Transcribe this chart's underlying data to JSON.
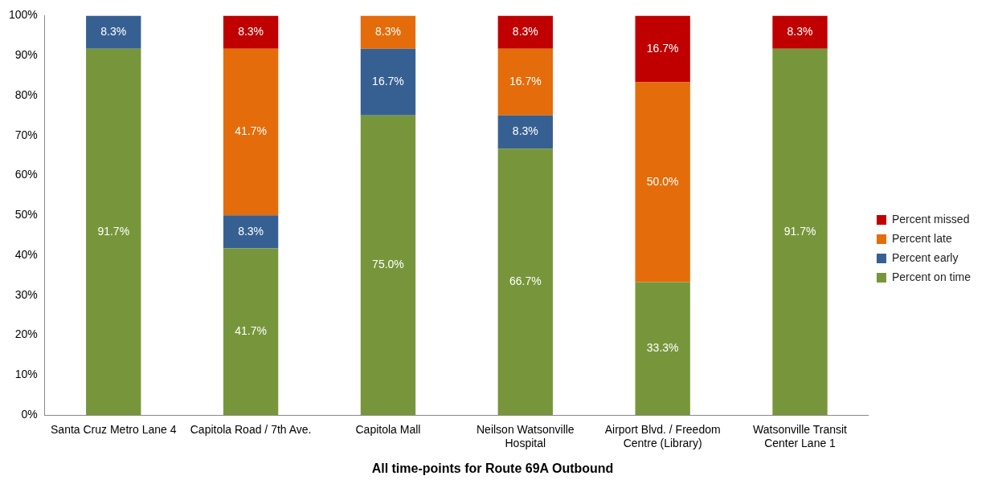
{
  "chart_data": {
    "type": "bar",
    "title": "All time-points for Route 69A Outbound",
    "stacked": true,
    "categories": [
      "Santa Cruz Metro Lane 4",
      "Capitola Road / 7th Ave.",
      "Capitola Mall",
      "Neilson Watsonville Hospital",
      "Airport Blvd. / Freedom Centre (Library)",
      "Watsonville Transit Center Lane 1"
    ],
    "series": [
      {
        "name": "Percent on time",
        "color": "#77963b",
        "values": [
          91.7,
          41.7,
          75.0,
          66.7,
          33.3,
          91.7
        ],
        "value_labels": [
          "91.7%",
          "41.7%",
          "75.0%",
          "66.7%",
          "33.3%",
          "91.7%"
        ]
      },
      {
        "name": "Percent early",
        "color": "#376092",
        "values": [
          8.3,
          8.3,
          16.7,
          8.3,
          null,
          null
        ],
        "value_labels": [
          "8.3%",
          "8.3%",
          "16.7%",
          "8.3%",
          null,
          null
        ]
      },
      {
        "name": "Percent late",
        "color": "#e46c0a",
        "values": [
          null,
          41.7,
          8.3,
          16.7,
          50.0,
          null
        ],
        "value_labels": [
          null,
          "41.7%",
          "8.3%",
          "16.7%",
          "50.0%",
          null
        ]
      },
      {
        "name": "Percent missed",
        "color": "#c00000",
        "values": [
          null,
          8.3,
          null,
          8.3,
          16.7,
          8.3
        ],
        "value_labels": [
          null,
          "8.3%",
          null,
          "8.3%",
          "16.7%",
          "8.3%"
        ]
      }
    ],
    "ylim": [
      0,
      100
    ],
    "yticks": [
      {
        "value": 0,
        "label": "0%"
      },
      {
        "value": 10,
        "label": "10%"
      },
      {
        "value": 20,
        "label": "20%"
      },
      {
        "value": 30,
        "label": "30%"
      },
      {
        "value": 40,
        "label": "40%"
      },
      {
        "value": 50,
        "label": "50%"
      },
      {
        "value": 60,
        "label": "60%"
      },
      {
        "value": 70,
        "label": "70%"
      },
      {
        "value": 80,
        "label": "80%"
      },
      {
        "value": 90,
        "label": "90%"
      },
      {
        "value": 100,
        "label": "100%"
      }
    ],
    "grid": false,
    "legend": "right"
  }
}
